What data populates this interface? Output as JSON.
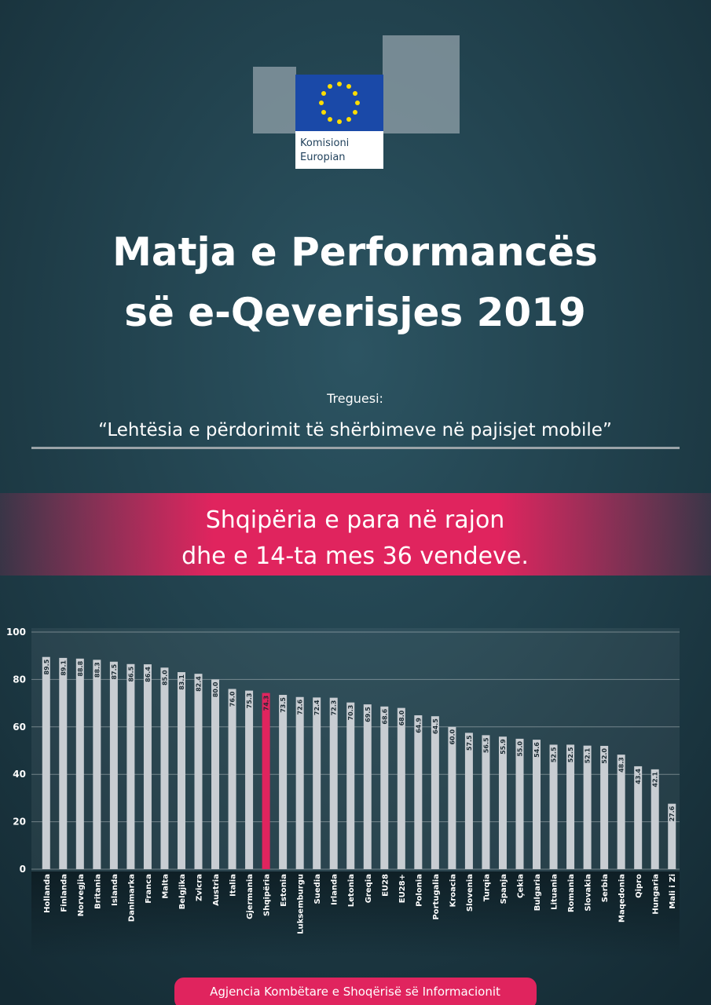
{
  "header": {
    "logo_text": [
      "Komisioni",
      "Europian"
    ],
    "title": [
      "Matja e Performancës",
      "së e-Qeverisjes 2019"
    ],
    "indicator_label": "Treguesi:",
    "indicator": "“Lehtësia e përdorimit të shërbimeve në pajisjet mobile”"
  },
  "banner": [
    "Shqipëria e para në rajon",
    "dhe e 14-ta mes 36 vendeve."
  ],
  "footer": "Agjencia Kombëtare e Shoqërisë së Informacionit",
  "chart_data": {
    "type": "bar",
    "categories": [
      "Hollanda",
      "Finlanda",
      "Norvegjia",
      "Britania",
      "Islanda",
      "Danimarka",
      "Franca",
      "Malta",
      "Belgjika",
      "Zvicra",
      "Austria",
      "Italia",
      "Gjermania",
      "Shqipëria",
      "Estonia",
      "Luksemburgu",
      "Suedia",
      "Irlanda",
      "Letonia",
      "Greqia",
      "EU28",
      "EU28+",
      "Polonia",
      "Portugalia",
      "Kroacia",
      "Slovenia",
      "Turqia",
      "Spanja",
      "Çekia",
      "Bulgaria",
      "Lituania",
      "Romania",
      "Slovakia",
      "Serbia",
      "Maqedonia",
      "Qipro",
      "Hungaria",
      "Mali i Zi"
    ],
    "values": [
      89.5,
      89.1,
      88.8,
      88.3,
      87.5,
      86.5,
      86.4,
      85.0,
      83.1,
      82.4,
      80.0,
      76.0,
      75.3,
      74.3,
      73.5,
      72.6,
      72.4,
      72.3,
      70.3,
      69.5,
      68.6,
      68.0,
      64.9,
      64.5,
      60.0,
      57.5,
      56.5,
      55.9,
      55.0,
      54.6,
      52.5,
      52.5,
      52.1,
      52.0,
      48.3,
      43.4,
      42.1,
      27.6
    ],
    "value_labels": [
      "89.5",
      "89.1",
      "88.8",
      "88.3",
      "87.5",
      "86.5",
      "86.4",
      "85.0",
      "83.1",
      "82.4",
      "80.0",
      "76.0",
      "75.3",
      "74.3",
      "73.5",
      "72.6",
      "72.4",
      "72.3",
      "70.3",
      "69.5",
      "68.6",
      "68.0",
      "64.9",
      "64.5",
      "60.0",
      "57.5",
      "56.5",
      "55.9",
      "55.0",
      "54.6",
      "52.5",
      "52.5",
      "52.1",
      "52.0",
      "48.3",
      "43.4",
      "42.1",
      "27.6"
    ],
    "colors": [
      "#c8cdd2",
      "#c8cdd2",
      "#c8cdd2",
      "#c8cdd2",
      "#c8cdd2",
      "#c8cdd2",
      "#c8cdd2",
      "#c8cdd2",
      "#c8cdd2",
      "#c8cdd2",
      "#c8cdd2",
      "#c8cdd2",
      "#c8cdd2",
      "#e0245e",
      "#c8cdd2",
      "#c8cdd2",
      "#c8cdd2",
      "#c8cdd2",
      "#c8cdd2",
      "#c8cdd2",
      "#c8cdd2",
      "#c8cdd2",
      "#c8cdd2",
      "#c8cdd2",
      "#c8cdd2",
      "#c8cdd2",
      "#c8cdd2",
      "#c8cdd2",
      "#c8cdd2",
      "#c8cdd2",
      "#c8cdd2",
      "#c8cdd2",
      "#c8cdd2",
      "#c8cdd2",
      "#c8cdd2",
      "#c8cdd2",
      "#c8cdd2",
      "#c8cdd2"
    ],
    "ylim": [
      0,
      100
    ],
    "yticks": [
      0,
      20,
      40,
      60,
      80,
      100
    ],
    "grid": true
  }
}
